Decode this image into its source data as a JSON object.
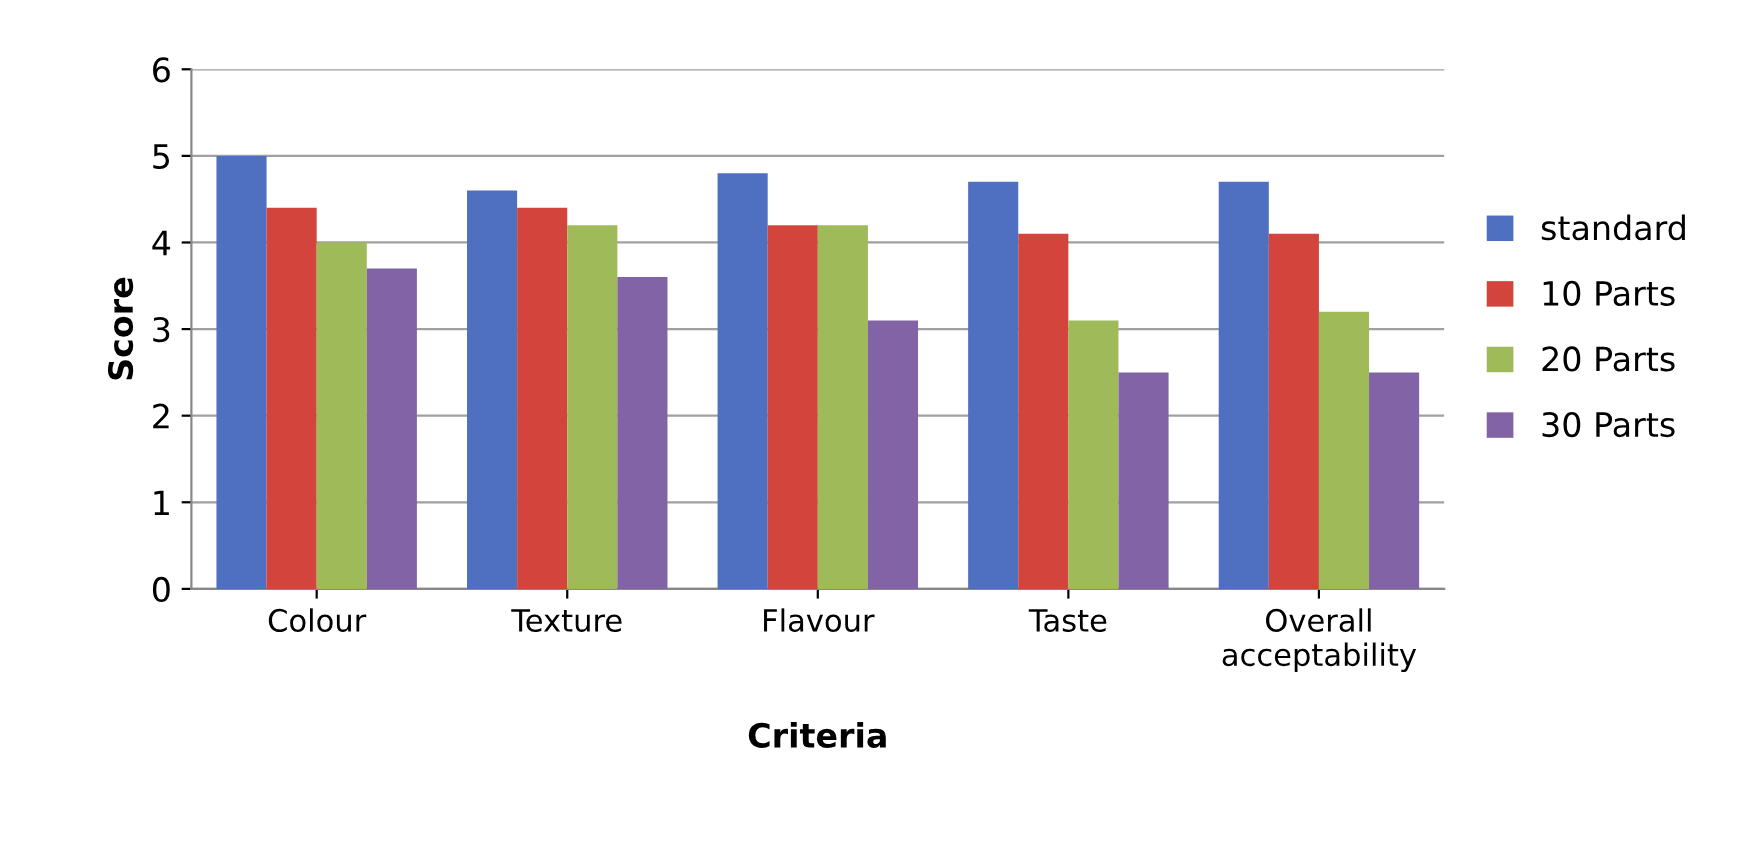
{
  "chart_data": {
    "type": "bar",
    "xlabel": "Criteria",
    "ylabel": "Score",
    "categories": [
      "Colour",
      "Texture",
      "Flavour",
      "Taste",
      "Overall\nacceptability"
    ],
    "series": [
      {
        "name": "standard",
        "color": "#4f6fc0",
        "values": [
          5.0,
          4.6,
          4.8,
          4.7,
          4.7
        ]
      },
      {
        "name": "10 Parts",
        "color": "#d2443c",
        "values": [
          4.4,
          4.4,
          4.2,
          4.1,
          4.1
        ]
      },
      {
        "name": "20 Parts",
        "color": "#9fba58",
        "values": [
          4.0,
          4.2,
          4.2,
          3.1,
          3.2
        ]
      },
      {
        "name": "30 Parts",
        "color": "#8264a6",
        "values": [
          3.7,
          3.6,
          3.1,
          2.5,
          2.5
        ]
      }
    ],
    "ylim": [
      0,
      6
    ],
    "yticks": [
      0,
      1,
      2,
      3,
      4,
      5,
      6
    ],
    "grid": "y",
    "legend": "right"
  }
}
